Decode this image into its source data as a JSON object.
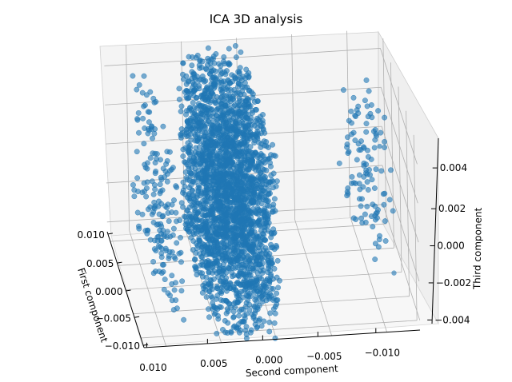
{
  "chart_data": {
    "type": "scatter",
    "title": "ICA 3D analysis",
    "xlabel": "First component",
    "ylabel": "Second component",
    "zlabel": "Third component",
    "x_ticks": [
      "0.010",
      "0.005",
      "0.000",
      "−0.005",
      "−0.010"
    ],
    "y_ticks": [
      "0.010",
      "0.005",
      "0.000",
      "−0.005",
      "−0.010"
    ],
    "z_ticks": [
      "−0.004",
      "−0.002",
      "0.000",
      "0.002",
      "0.004"
    ],
    "xlim": [
      -0.012,
      0.012
    ],
    "ylim": [
      -0.013,
      0.012
    ],
    "zlim": [
      -0.0045,
      0.005
    ],
    "grid": true,
    "marker_color": "#1f77b4",
    "marker_alpha": 0.6,
    "clusters": [
      {
        "description": "dense central block",
        "x_range": [
          -0.012,
          0.012
        ],
        "y_range": [
          -0.0005,
          0.0055
        ],
        "z_range": [
          -0.0045,
          0.0048
        ]
      },
      {
        "description": "sparse left column",
        "x_range": [
          -0.011,
          0.011
        ],
        "y_range": [
          0.008,
          0.0098
        ],
        "z_range": [
          -0.004,
          0.004
        ]
      },
      {
        "description": "sparse right column",
        "x_range": [
          -0.008,
          0.008
        ],
        "y_range": [
          -0.0115,
          -0.0085
        ],
        "z_range": [
          -0.002,
          0.004
        ]
      }
    ]
  }
}
